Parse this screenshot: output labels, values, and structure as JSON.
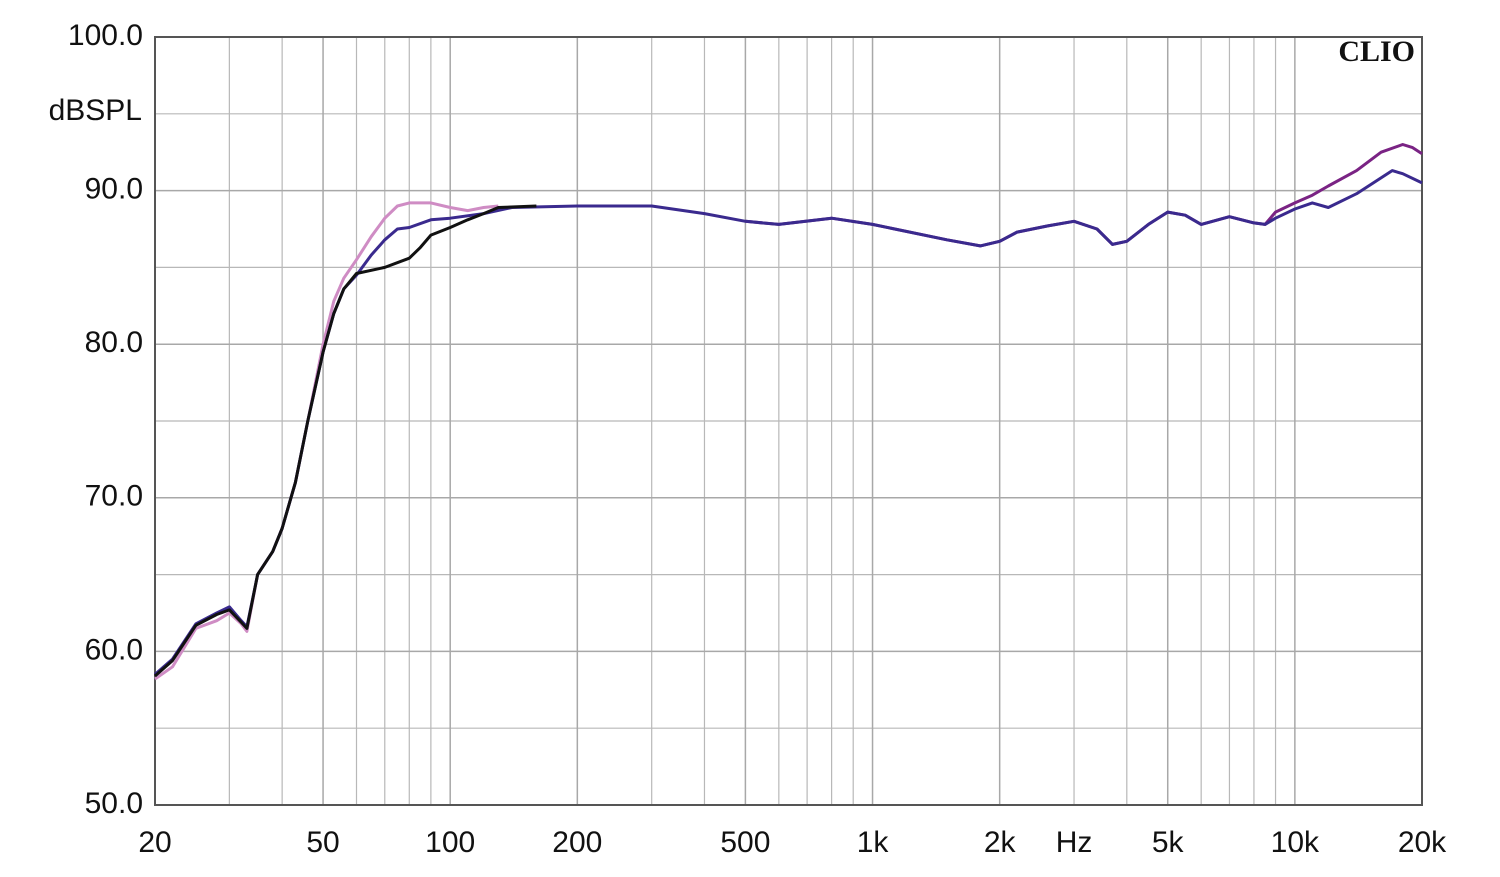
{
  "chart_data": {
    "type": "line",
    "annotation": "CLIO",
    "y_label": "dBSPL",
    "x_label": "Hz",
    "log_x": true,
    "grid": true,
    "xlim": [
      20,
      20000
    ],
    "xticks": [
      20,
      50,
      100,
      200,
      500,
      {
        "value": 1000,
        "label": "1k"
      },
      {
        "value": 2000,
        "label": "2k"
      },
      {
        "value": 5000,
        "label": "5k"
      },
      {
        "value": 10000,
        "label": "10k"
      },
      {
        "value": 20000,
        "label": "20k"
      }
    ],
    "x_label_at": 3000,
    "xminor": [
      30,
      40,
      60,
      70,
      80,
      90,
      300,
      400,
      600,
      700,
      800,
      900,
      3000,
      4000,
      6000,
      7000,
      8000,
      9000
    ],
    "ylim": [
      50,
      100
    ],
    "yticks": [
      {
        "value": 50,
        "label": "50.0"
      },
      {
        "value": 60,
        "label": "60.0"
      },
      {
        "value": 70,
        "label": "70.0"
      },
      {
        "value": 80,
        "label": "80.0"
      },
      {
        "value": 90,
        "label": "90.0"
      },
      {
        "value": 100,
        "label": "100.0"
      }
    ],
    "yminor": [
      55,
      65,
      75,
      85,
      95
    ],
    "series": [
      {
        "color": "#cf8cc4",
        "x": [
          20,
          22,
          25,
          28,
          30,
          32,
          33,
          35,
          38,
          40,
          43,
          46,
          50,
          53,
          56,
          60,
          65,
          70,
          75,
          80,
          90,
          100,
          110,
          120,
          130
        ],
        "values": [
          58.2,
          59,
          61.5,
          62,
          62.5,
          61.8,
          61.3,
          65,
          66.5,
          68,
          71,
          75,
          80,
          82.8,
          84.3,
          85.5,
          87,
          88.2,
          89,
          89.2,
          89.2,
          88.9,
          88.7,
          88.9,
          89
        ]
      },
      {
        "color": "#7a2384",
        "x": [
          500,
          600,
          800,
          1000,
          1500,
          1800,
          2000,
          2200,
          2600,
          3000,
          3400,
          3700,
          4000,
          4500,
          5000,
          5500,
          6000,
          7000,
          8000,
          8500,
          9000,
          10000,
          11000,
          12000,
          14000,
          16000,
          18000,
          19000,
          20000
        ],
        "values": [
          88,
          87.8,
          88.2,
          87.8,
          86.8,
          86.4,
          86.7,
          87.3,
          87.7,
          88,
          87.5,
          86.5,
          86.7,
          87.8,
          88.6,
          88.4,
          87.8,
          88.3,
          87.9,
          87.8,
          88.6,
          89.2,
          89.7,
          90.3,
          91.3,
          92.5,
          93,
          92.8,
          92.4
        ]
      },
      {
        "color": "#3a2a8e",
        "x": [
          20,
          22,
          25,
          28,
          30,
          32,
          33,
          35,
          38,
          40,
          43,
          46,
          50,
          53,
          56,
          60,
          65,
          70,
          75,
          80,
          90,
          100,
          120,
          140,
          200,
          300,
          400,
          500,
          600,
          800,
          1000,
          1500,
          1800,
          2000,
          2200,
          2600,
          3000,
          3400,
          3700,
          4000,
          4500,
          5000,
          5500,
          6000,
          7000,
          8000,
          8500,
          9000,
          10000,
          11000,
          12000,
          14000,
          17000,
          18000,
          20000
        ],
        "values": [
          58.5,
          59.5,
          61.8,
          62.5,
          62.9,
          62,
          61.6,
          65,
          66.5,
          68,
          71,
          75,
          79.5,
          82,
          83.6,
          84.5,
          85.8,
          86.8,
          87.5,
          87.6,
          88.1,
          88.2,
          88.5,
          88.9,
          89,
          89,
          88.5,
          88,
          87.8,
          88.2,
          87.8,
          86.8,
          86.4,
          86.7,
          87.3,
          87.7,
          88,
          87.5,
          86.5,
          86.7,
          87.8,
          88.6,
          88.4,
          87.8,
          88.3,
          87.9,
          87.8,
          88.2,
          88.8,
          89.2,
          88.9,
          89.8,
          91.3,
          91.1,
          90.5
        ]
      },
      {
        "color": "#111111",
        "x": [
          20,
          22,
          25,
          28,
          30,
          32,
          33,
          35,
          38,
          40,
          43,
          46,
          50,
          53,
          56,
          60,
          70,
          80,
          85,
          90,
          100,
          110,
          120,
          130,
          160
        ],
        "values": [
          58.4,
          59.4,
          61.7,
          62.4,
          62.7,
          61.9,
          61.5,
          65,
          66.5,
          68,
          71,
          75,
          79.5,
          82,
          83.6,
          84.6,
          85,
          85.6,
          86.3,
          87.1,
          87.6,
          88.1,
          88.5,
          88.9,
          89
        ]
      }
    ]
  }
}
